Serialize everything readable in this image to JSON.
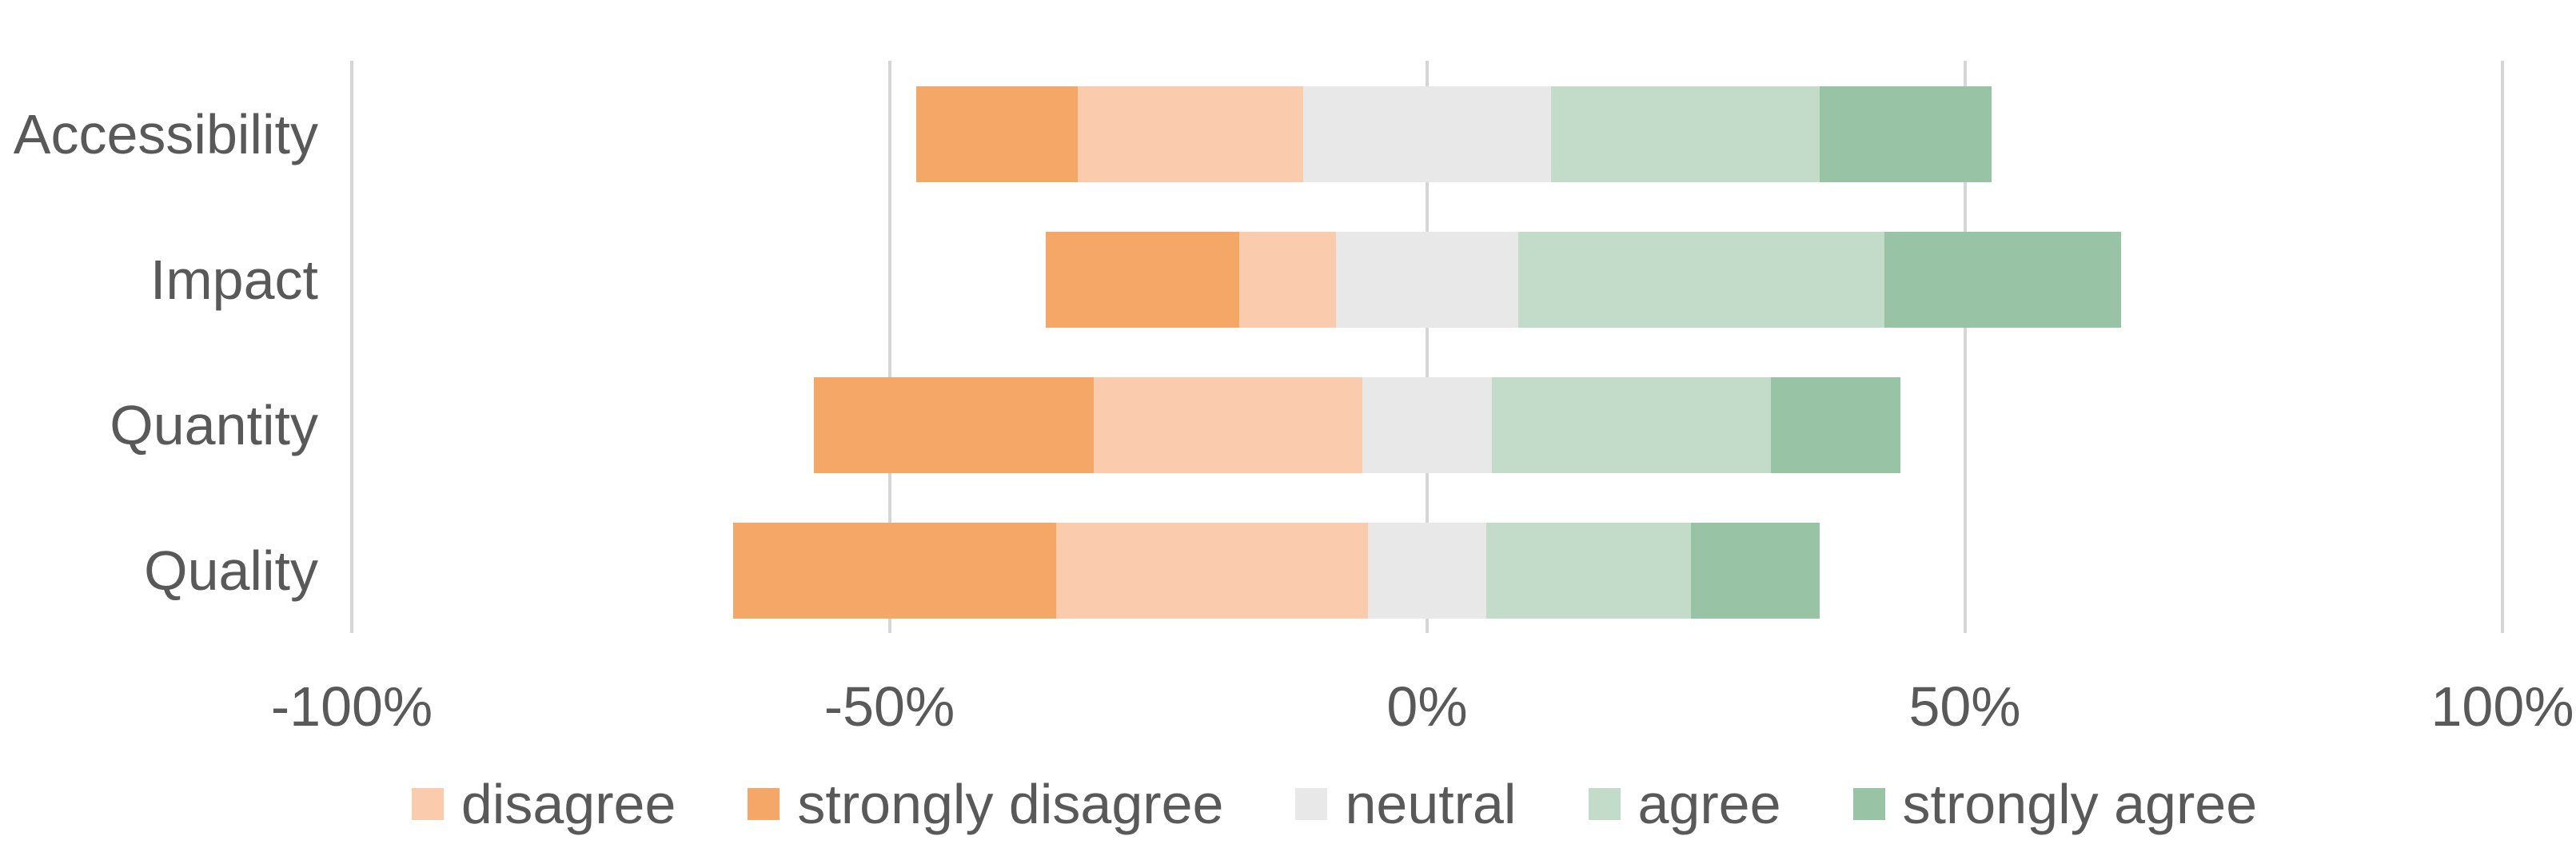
{
  "chart": {
    "background": "#FFFFFF",
    "text_color": "#595959",
    "gridline_color": "#D6D6D6"
  },
  "chart_data": {
    "type": "bar",
    "variant": "diverging-stacked-horizontal-likert",
    "title": "",
    "categories": [
      "Accessibility",
      "Impact",
      "Quantity",
      "Quality"
    ],
    "stack_order_left_to_right": [
      "strongly disagree",
      "disagree",
      "neutral",
      "agree",
      "strongly agree"
    ],
    "series": [
      {
        "name": "strongly disagree",
        "color": "#F5A768",
        "values": [
          15,
          18,
          26,
          30
        ]
      },
      {
        "name": "disagree",
        "color": "#FBCBAE",
        "values": [
          21,
          9,
          25,
          29
        ]
      },
      {
        "name": "neutral",
        "color": "#E9E8E8",
        "values": [
          23,
          17,
          12,
          11
        ]
      },
      {
        "name": "agree",
        "color": "#C3DCCA",
        "values": [
          25,
          34,
          26,
          19
        ]
      },
      {
        "name": "strongly agree",
        "color": "#98C4A5",
        "values": [
          16,
          22,
          12,
          12
        ]
      }
    ],
    "neutral_centered_on_zero": true,
    "units": "percent",
    "xlim": [
      -100,
      100
    ],
    "x_ticks": [
      {
        "value": -100,
        "label": "-100%"
      },
      {
        "value": -50,
        "label": "-50%"
      },
      {
        "value": 0,
        "label": "0%"
      },
      {
        "value": 50,
        "label": "50%"
      },
      {
        "value": 100,
        "label": "100%"
      }
    ],
    "grid": "vertical",
    "legend_position": "bottom",
    "legend": [
      {
        "label": "disagree",
        "color": "#FBCBAE"
      },
      {
        "label": "strongly disagree",
        "color": "#F5A768"
      },
      {
        "label": "neutral",
        "color": "#E9E8E8"
      },
      {
        "label": "agree",
        "color": "#C3DCCA"
      },
      {
        "label": "strongly agree",
        "color": "#98C4A5"
      }
    ]
  }
}
